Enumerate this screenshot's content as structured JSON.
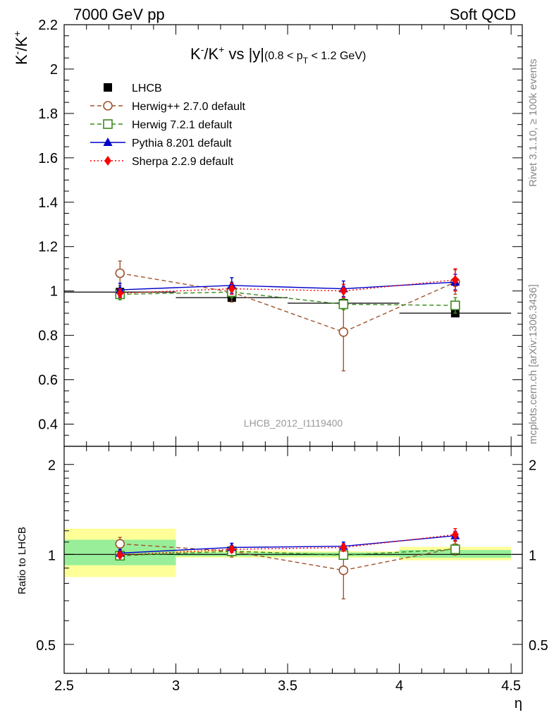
{
  "header": {
    "left": "7000 GeV pp",
    "right": "Soft QCD"
  },
  "side_labels": {
    "rivet": "Rivet 3.1.10, ≥ 100k events",
    "mcplots": "mcplots.cern.ch [arXiv:1306.3436]"
  },
  "watermark": "LHCB_2012_I1119400",
  "colors": {
    "data": "#000000",
    "herwigpp": "#a0522d",
    "herwig7": "#3a8a1a",
    "pythia": "#0000cc",
    "sherpa": "#ff0000",
    "band_outer": "#ffff99",
    "band_inner": "#99ee99"
  },
  "chart_data": [
    {
      "type": "scatter",
      "title": "K⁻/K⁺ vs |y|",
      "title_main": "K",
      "title_sup1": "-",
      "title_mid": "/K",
      "title_sup2": "+",
      "title_tail": " vs |y|",
      "title_sub_a": "(0.8 < p",
      "title_sub_T": "T",
      "title_sub_b": " < 1.2 GeV)",
      "ylabel": "K⁻/K⁺",
      "ylabel_main": "K",
      "ylabel_sup1": "-",
      "ylabel_mid": "/K",
      "ylabel_sup2": "+",
      "xlim": [
        2.5,
        4.55
      ],
      "ylim": [
        0.3,
        2.2
      ],
      "yticks": [
        "0.4",
        "0.6",
        "0.8",
        "1",
        "1.2",
        "1.4",
        "1.6",
        "1.8",
        "2",
        "2.2"
      ],
      "ytick_values": [
        0.4,
        0.6,
        0.8,
        1.0,
        1.2,
        1.4,
        1.6,
        1.8,
        2.0,
        2.2
      ],
      "legend": "top-left",
      "series": [
        {
          "key": "lhcb",
          "name": "LHCB",
          "marker": "square-filled",
          "line": "none",
          "x": [
            2.75,
            3.25,
            3.75,
            4.25
          ],
          "xerr": [
            0.25,
            0.25,
            0.25,
            0.25
          ],
          "y": [
            0.995,
            0.97,
            0.945,
            0.9
          ],
          "yerr": [
            0.01,
            0.01,
            0.01,
            0.01
          ]
        },
        {
          "key": "herwigpp",
          "name": "Herwig++ 2.7.0 default",
          "marker": "circle-open",
          "line": "dashed",
          "x": [
            2.75,
            3.25,
            3.75,
            4.25
          ],
          "y": [
            1.08,
            0.995,
            0.815,
            1.04
          ],
          "yerr": [
            0.055,
            0.045,
            0.175,
            0.055
          ]
        },
        {
          "key": "herwig7",
          "name": "Herwig 7.2.1 default",
          "marker": "square-open",
          "line": "dashed",
          "x": [
            2.75,
            3.25,
            3.75,
            4.25
          ],
          "y": [
            0.985,
            0.995,
            0.94,
            0.935
          ],
          "yerr": [
            0.025,
            0.025,
            0.025,
            0.035
          ]
        },
        {
          "key": "pythia",
          "name": "Pythia 8.201 default",
          "marker": "triangle-filled",
          "line": "solid",
          "x": [
            2.75,
            3.25,
            3.75,
            4.25
          ],
          "y": [
            1.005,
            1.025,
            1.01,
            1.04
          ],
          "yerr": [
            0.03,
            0.035,
            0.035,
            0.035
          ]
        },
        {
          "key": "sherpa",
          "name": "Sherpa 2.2.9 default",
          "marker": "diamond-filled",
          "line": "dotted",
          "x": [
            2.75,
            3.25,
            3.75,
            4.25
          ],
          "y": [
            0.99,
            1.01,
            1.0,
            1.05
          ],
          "yerr": [
            0.02,
            0.025,
            0.03,
            0.05
          ]
        }
      ]
    },
    {
      "type": "scatter",
      "ylabel": "Ratio to LHCB",
      "xlabel": "η",
      "xlim": [
        2.5,
        4.55
      ],
      "ylim": [
        0.4,
        2.3
      ],
      "yscale": "log",
      "yticks": [
        "0.5",
        "1",
        "2"
      ],
      "ytick_values": [
        0.5,
        1,
        2
      ],
      "xticks": [
        "2.5",
        "3",
        "3.5",
        "4",
        "4.5"
      ],
      "xtick_values": [
        2.5,
        3.0,
        3.5,
        4.0,
        4.5
      ],
      "reference_line": 1,
      "bands": [
        {
          "x0": 2.5,
          "x1": 3.0,
          "outer": [
            0.84,
            1.22
          ],
          "inner": [
            0.92,
            1.12
          ]
        },
        {
          "x0": 3.0,
          "x1": 3.5,
          "outer": [
            0.975,
            1.03
          ],
          "inner": [
            0.985,
            1.015
          ]
        },
        {
          "x0": 3.5,
          "x1": 4.0,
          "outer": [
            0.975,
            1.025
          ],
          "inner": [
            0.985,
            1.015
          ]
        },
        {
          "x0": 4.0,
          "x1": 4.5,
          "outer": [
            0.955,
            1.06
          ],
          "inner": [
            0.975,
            1.035
          ]
        }
      ],
      "series": [
        {
          "key": "herwigpp",
          "x": [
            2.75,
            3.25,
            3.75,
            4.25
          ],
          "y": [
            1.085,
            1.025,
            0.885,
            1.05
          ],
          "yerr": [
            0.055,
            0.045,
            0.175,
            0.055
          ]
        },
        {
          "key": "herwig7",
          "x": [
            2.75,
            3.25,
            3.75,
            4.25
          ],
          "y": [
            0.99,
            1.025,
            0.995,
            1.04
          ],
          "yerr": [
            0.025,
            0.025,
            0.025,
            0.035
          ]
        },
        {
          "key": "pythia",
          "x": [
            2.75,
            3.25,
            3.75,
            4.25
          ],
          "y": [
            1.01,
            1.055,
            1.065,
            1.155
          ],
          "yerr": [
            0.03,
            0.035,
            0.035,
            0.04
          ]
        },
        {
          "key": "sherpa",
          "x": [
            2.75,
            3.25,
            3.75,
            4.25
          ],
          "y": [
            0.995,
            1.04,
            1.055,
            1.165
          ],
          "yerr": [
            0.02,
            0.025,
            0.03,
            0.055
          ]
        }
      ]
    }
  ]
}
